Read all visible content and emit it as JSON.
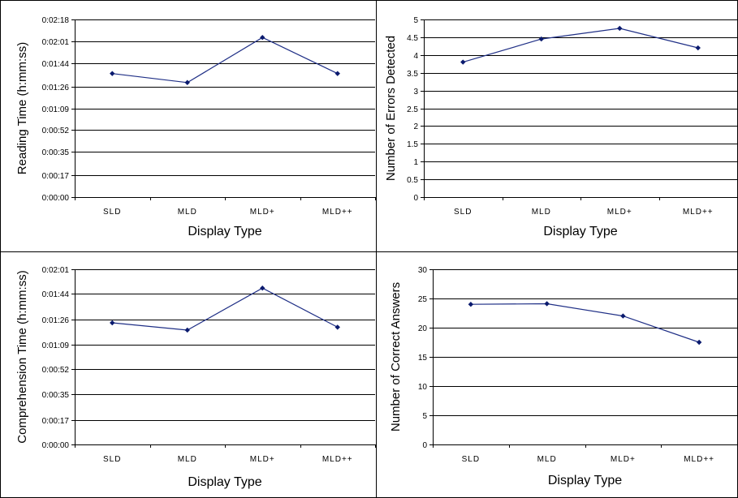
{
  "chart_data": [
    {
      "type": "line",
      "categories": [
        "SLD",
        "MLD",
        "MLD+",
        "MLD++"
      ],
      "values": [
        96,
        89,
        124,
        96
      ],
      "value_format": "hms",
      "yticks": [
        0,
        17,
        35,
        52,
        69,
        86,
        104,
        121,
        138
      ],
      "ytick_labels": [
        "0:00:00",
        "0:00:17",
        "0:00:35",
        "0:00:52",
        "0:01:09",
        "0:01:26",
        "0:01:44",
        "0:02:01",
        "0:02:18"
      ],
      "ylim": [
        0,
        138
      ],
      "xlabel": "Display Type",
      "ylabel": "Reading Time (h:mm:ss)",
      "grid": true,
      "color": "#1f2f86"
    },
    {
      "type": "line",
      "categories": [
        "SLD",
        "MLD",
        "MLD+",
        "MLD++"
      ],
      "values": [
        3.8,
        4.45,
        4.75,
        4.2
      ],
      "yticks": [
        0,
        0.5,
        1,
        1.5,
        2,
        2.5,
        3,
        3.5,
        4,
        4.5,
        5
      ],
      "ytick_labels": [
        "0",
        "0.5",
        "1",
        "1.5",
        "2",
        "2.5",
        "3",
        "3.5",
        "4",
        "4.5",
        "5"
      ],
      "ylim": [
        0,
        5
      ],
      "xlabel": "Display Type",
      "ylabel": "Number of Errors Detected",
      "grid": true,
      "color": "#1f2f86"
    },
    {
      "type": "line",
      "categories": [
        "SLD",
        "MLD",
        "MLD+",
        "MLD++"
      ],
      "values": [
        84,
        79,
        108,
        81
      ],
      "value_format": "hms",
      "yticks": [
        0,
        17,
        35,
        52,
        69,
        86,
        104,
        121
      ],
      "ytick_labels": [
        "0:00:00",
        "0:00:17",
        "0:00:35",
        "0:00:52",
        "0:01:09",
        "0:01:26",
        "0:01:44",
        "0:02:01"
      ],
      "ylim": [
        0,
        121
      ],
      "xlabel": "Display Type",
      "ylabel": "Comprehension Time (h:mm:ss)",
      "grid": true,
      "color": "#1f2f86"
    },
    {
      "type": "line",
      "categories": [
        "SLD",
        "MLD",
        "MLD+",
        "MLD++"
      ],
      "values": [
        24,
        24.1,
        22,
        17.5
      ],
      "yticks": [
        0,
        5,
        10,
        15,
        20,
        25,
        30
      ],
      "ytick_labels": [
        "0",
        "5",
        "10",
        "15",
        "20",
        "25",
        "30"
      ],
      "ylim": [
        0,
        30
      ],
      "xlabel": "Display Type",
      "ylabel": "Number of Correct Answers",
      "grid": true,
      "color": "#1f2f86"
    }
  ]
}
